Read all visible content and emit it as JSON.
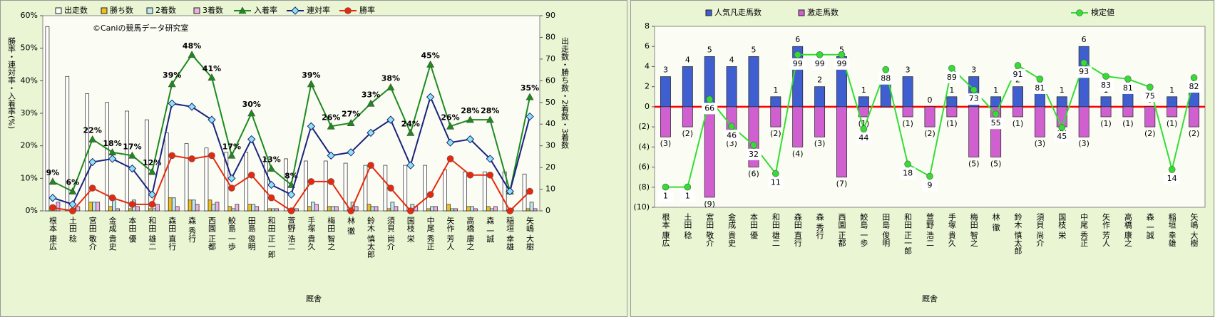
{
  "chart_data": [
    {
      "type": "bar",
      "watermark": "©Caniの競馬データ研究室",
      "xlabel": "厩舎",
      "ylabel": "勝率・連対率・入着率(%)",
      "y2label": "出走数・勝ち数・2着数・3着数",
      "barmode": "group",
      "categories": [
        "根本 康広",
        "土田 稔",
        "宮田 敬介",
        "金成 貴史",
        "本田 優",
        "和田 雄二",
        "森田 直行",
        "森 秀行",
        "西園 正都",
        "鮫島 一歩",
        "田島 俊明",
        "和田 正一郎",
        "萱野 浩二",
        "手塚 貴久",
        "梅田 智之",
        "林 徹",
        "鈴木 慎太郎",
        "須貝 尚介",
        "国枝 栄",
        "中尾 秀正",
        "矢作 芳人",
        "高橋 康之",
        "森 一誠",
        "稲垣 幸雄",
        "矢嶋 大樹"
      ],
      "ylim": [
        0,
        60
      ],
      "yticks": [
        {
          "value": 0,
          "label": "0%"
        },
        {
          "value": 10,
          "label": "10%"
        },
        {
          "value": 20,
          "label": "20%"
        },
        {
          "value": 30,
          "label": "30%"
        },
        {
          "value": 40,
          "label": "40%"
        },
        {
          "value": 50,
          "label": "50%"
        },
        {
          "value": 60,
          "label": "60%"
        }
      ],
      "y2lim": [
        0,
        90
      ],
      "y2ticks": [
        0,
        10,
        20,
        30,
        40,
        50,
        60,
        70,
        80,
        90
      ],
      "series": [
        {
          "name": "出走数",
          "type": "bar",
          "axis": "y2",
          "color": "#ffffff",
          "values": [
            85,
            62,
            54,
            50,
            46,
            42,
            36,
            31,
            29,
            27,
            27,
            24,
            24,
            23,
            23,
            22,
            21,
            21,
            21,
            21,
            19,
            18,
            18,
            18,
            17
          ]
        },
        {
          "name": "勝ち数",
          "type": "bar",
          "axis": "y2",
          "color": "#f0c020",
          "values": [
            1,
            0,
            4,
            2,
            1,
            1,
            6,
            5,
            5,
            2,
            3,
            1,
            0,
            2,
            2,
            0,
            3,
            1,
            0,
            1,
            3,
            2,
            2,
            0,
            1
          ]
        },
        {
          "name": "2着数",
          "type": "bar",
          "axis": "y2",
          "color": "#bfe6f2",
          "values": [
            2,
            1,
            4,
            6,
            5,
            1,
            6,
            5,
            3,
            1,
            3,
            1,
            1,
            4,
            2,
            4,
            2,
            4,
            3,
            2,
            1,
            2,
            1,
            1,
            4
          ]
        },
        {
          "name": "3着数",
          "type": "bar",
          "axis": "y2",
          "color": "#f0b0e0",
          "values": [
            4,
            2,
            4,
            1,
            2,
            3,
            2,
            3,
            4,
            3,
            2,
            1,
            1,
            3,
            2,
            2,
            2,
            2,
            2,
            2,
            1,
            1,
            2,
            0,
            1
          ]
        },
        {
          "name": "入着率",
          "type": "line",
          "marker": "triangle",
          "color": "#1e8a1e",
          "values": [
            9,
            6,
            22,
            18,
            17,
            12,
            39,
            48,
            41,
            17,
            30,
            13,
            8,
            39,
            26,
            27,
            33,
            38,
            24,
            45,
            26,
            28,
            28,
            6,
            35
          ],
          "value_labels": [
            "9%",
            "6%",
            "22%",
            "18%",
            "17%",
            "12%",
            "39%",
            "48%",
            "41%",
            "17%",
            "30%",
            "13%",
            "8%",
            "39%",
            "26%",
            "27%",
            "33%",
            "38%",
            "24%",
            "45%",
            "26%",
            "28%",
            "28%",
            null,
            "35%"
          ]
        },
        {
          "name": "連対率",
          "type": "line",
          "marker": "diamond",
          "color": "#1a237e",
          "values": [
            4,
            2,
            15,
            16,
            13,
            5,
            33,
            32,
            28,
            10,
            22,
            8,
            5,
            26,
            17,
            18,
            24,
            28,
            14,
            35,
            21,
            22,
            16,
            6,
            29
          ]
        },
        {
          "name": "勝率",
          "type": "line",
          "marker": "circle",
          "color": "#e8280e",
          "values": [
            1,
            0,
            7,
            4,
            2,
            2,
            17,
            16,
            17,
            7,
            11,
            4,
            0,
            9,
            9,
            0,
            14,
            7,
            0,
            5,
            16,
            11,
            11,
            0,
            6
          ]
        }
      ]
    },
    {
      "type": "bar",
      "xlabel": "厩舎",
      "barmode": "overlay",
      "zero_line_color": "#ff0000",
      "negative_tick_color": "#dd0000",
      "categories": [
        "根本 康広",
        "土田 稔",
        "宮田 敬介",
        "金成 貴史",
        "本田 優",
        "和田 雄二",
        "森田 直行",
        "森 秀行",
        "西園 正都",
        "鮫島 一歩",
        "田島 俊明",
        "和田 正一郎",
        "萱野 浩二",
        "手塚 貴久",
        "梅田 智之",
        "林 徹",
        "鈴木 慎太郎",
        "須貝 尚介",
        "国枝 栄",
        "中尾 秀正",
        "矢作 芳人",
        "高橋 康之",
        "森 一誠",
        "稲垣 幸雄",
        "矢嶋 大樹"
      ],
      "ylim": [
        -10,
        8
      ],
      "yticks": [
        {
          "value": -10,
          "label": "(10)"
        },
        {
          "value": -8,
          "label": "(8)"
        },
        {
          "value": -6,
          "label": "(6)"
        },
        {
          "value": -4,
          "label": "(4)"
        },
        {
          "value": -2,
          "label": "(2)"
        },
        0,
        2,
        4,
        6,
        8
      ],
      "y2lim": [
        -14,
        120
      ],
      "series": [
        {
          "name": "人気凡走馬数",
          "type": "bar",
          "color": "#3f5fd0",
          "values": [
            3,
            4,
            5,
            4,
            5,
            1,
            6,
            2,
            5,
            1,
            3,
            3,
            0,
            1,
            3,
            1,
            2,
            2,
            1,
            6,
            1,
            2,
            0,
            1,
            2
          ]
        },
        {
          "name": "激走馬数",
          "type": "bar",
          "color": "#d060d0",
          "label_color": "#dd0000",
          "values": [
            -3,
            -2,
            -9,
            -3,
            -6,
            -2,
            -4,
            -3,
            -7,
            -1,
            0,
            -1,
            -2,
            -1,
            -5,
            -5,
            -1,
            -3,
            -2,
            -3,
            -1,
            -1,
            -2,
            -1,
            -2
          ],
          "value_labels": [
            "(3)",
            "(2)",
            "(9)",
            "(3)",
            "(6)",
            "(2)",
            "(4)",
            "(3)",
            "(7)",
            "(1)",
            null,
            "(1)",
            "(2)",
            "(1)",
            "(5)",
            "(5)",
            "(1)",
            "(3)",
            "(2)",
            "(3)",
            "(1)",
            "(1)",
            "(2)",
            "(1)",
            "(2)"
          ]
        },
        {
          "name": "検定値",
          "type": "line",
          "marker": "circle",
          "axis": "y2",
          "color": "#33dd33",
          "label_color": "#0f8070",
          "values": [
            1,
            1,
            66,
            46,
            32,
            11,
            99,
            99,
            99,
            44,
            88,
            18,
            9,
            89,
            73,
            55,
            91,
            81,
            45,
            93,
            83,
            81,
            75,
            14,
            82
          ]
        }
      ]
    }
  ]
}
